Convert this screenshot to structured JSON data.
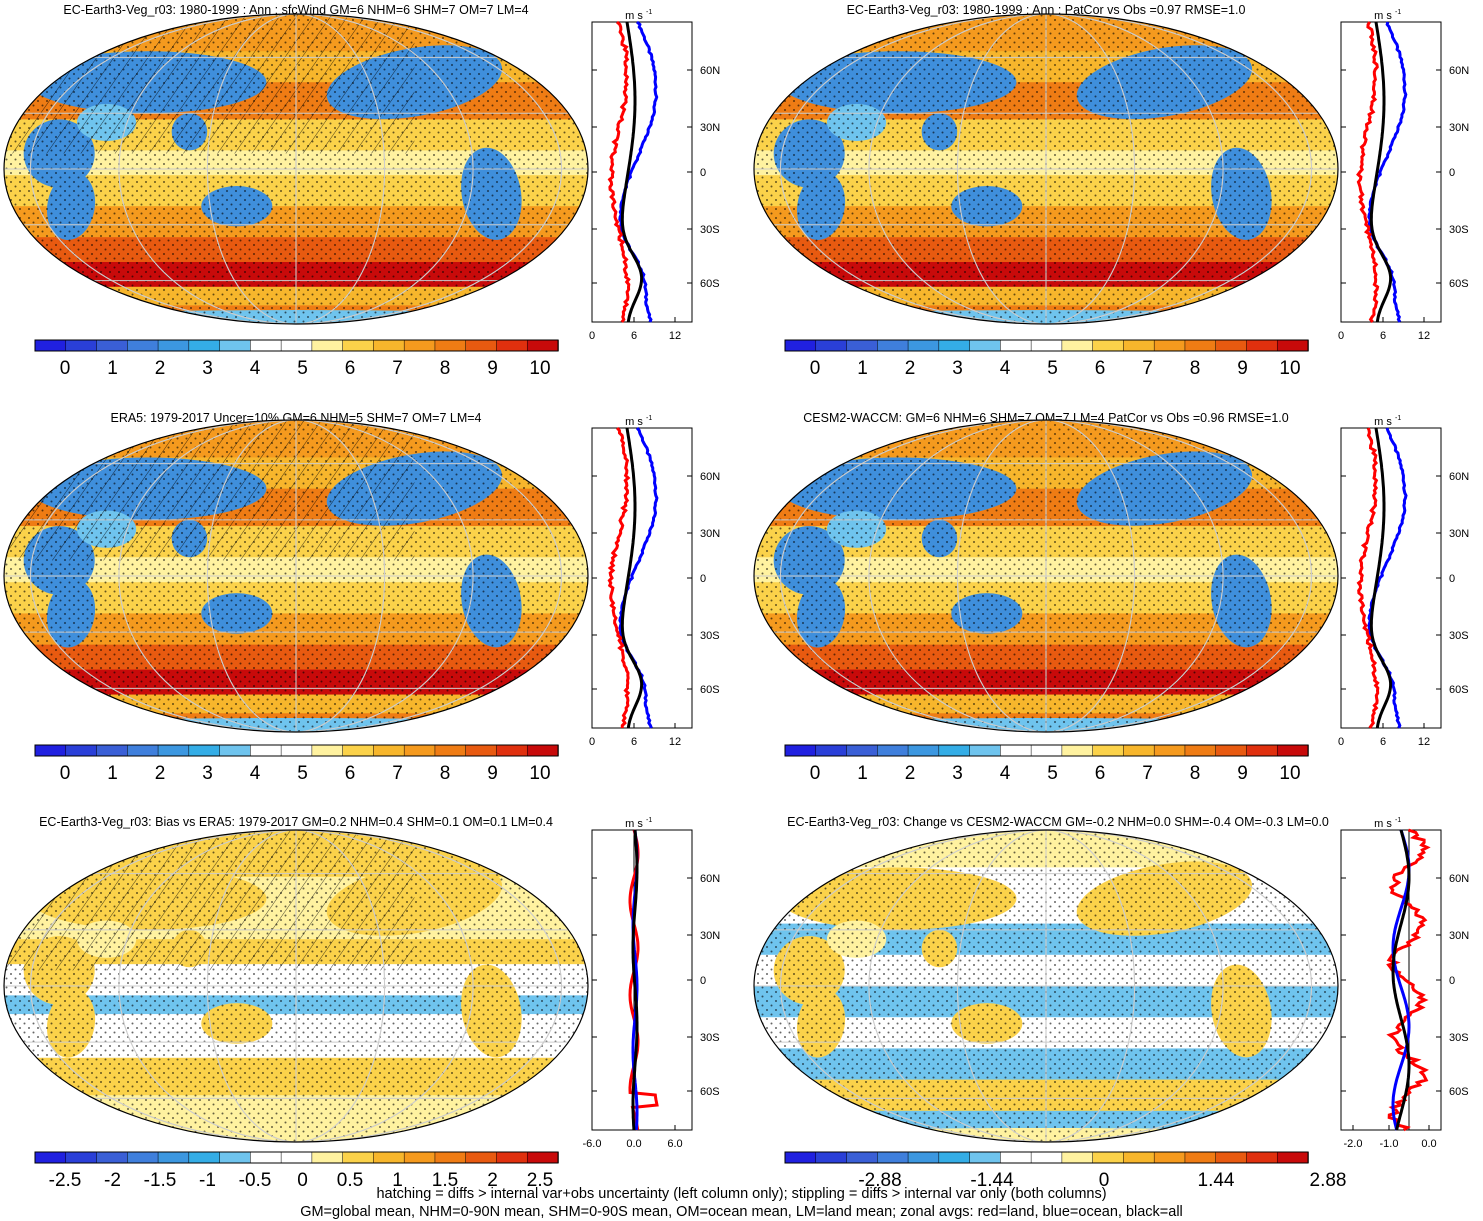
{
  "panels": [
    {
      "title": "EC-Earth3-Veg_r03: 1980-1999 : Ann : sfcWind GM=6 NHM=6 SHM=7 OM=7 LM=4",
      "kind": "clim",
      "hatch": true,
      "cb_labels": [
        "0",
        "1",
        "2",
        "3",
        "4",
        "5",
        "6",
        "7",
        "8",
        "9",
        "10"
      ],
      "zonal_unit": "m s-1",
      "zonal_xticks": [
        "0",
        "6",
        "12"
      ],
      "lat_ticks": [
        "60N",
        "30N",
        "0",
        "30S",
        "60S"
      ]
    },
    {
      "title": "EC-Earth3-Veg_r03: 1980-1999 : Ann : PatCor vs Obs =0.97 RMSE=1.0",
      "kind": "clim",
      "hatch": false,
      "cb_labels": [
        "0",
        "1",
        "2",
        "3",
        "4",
        "5",
        "6",
        "7",
        "8",
        "9",
        "10"
      ],
      "zonal_unit": "m s-1",
      "zonal_xticks": [
        "0",
        "6",
        "12"
      ],
      "lat_ticks": [
        "60N",
        "30N",
        "0",
        "30S",
        "60S"
      ]
    },
    {
      "title": "ERA5: 1979-2017 Uncer=10% GM=6 NHM=5 SHM=7 OM=7 LM=4",
      "kind": "clim",
      "hatch": true,
      "cb_labels": [
        "0",
        "1",
        "2",
        "3",
        "4",
        "5",
        "6",
        "7",
        "8",
        "9",
        "10"
      ],
      "zonal_unit": "m s-1",
      "zonal_xticks": [
        "0",
        "6",
        "12"
      ],
      "lat_ticks": [
        "60N",
        "30N",
        "0",
        "30S",
        "60S"
      ]
    },
    {
      "title": "CESM2-WACCM: GM=6 NHM=6 SHM=7 OM=7 LM=4 PatCor vs Obs =0.96 RMSE=1.0",
      "kind": "clim",
      "hatch": false,
      "cb_labels": [
        "0",
        "1",
        "2",
        "3",
        "4",
        "5",
        "6",
        "7",
        "8",
        "9",
        "10"
      ],
      "zonal_unit": "m s-1",
      "zonal_xticks": [
        "0",
        "6",
        "12"
      ],
      "lat_ticks": [
        "60N",
        "30N",
        "0",
        "30S",
        "60S"
      ]
    },
    {
      "title": "EC-Earth3-Veg_r03: Bias vs ERA5: 1979-2017 GM=0.2 NHM=0.4 SHM=0.1 OM=0.1 LM=0.4",
      "kind": "bias",
      "hatch": true,
      "cb_labels": [
        "-2.5",
        "-2",
        "-1.5",
        "-1",
        "-0.5",
        "0",
        "0.5",
        "1",
        "1.5",
        "2",
        "2.5"
      ],
      "zonal_unit": "m s-1",
      "zonal_xticks": [
        "-6.0",
        "0.0",
        "6.0"
      ],
      "lat_ticks": [
        "60N",
        "30N",
        "0",
        "30S",
        "60S"
      ]
    },
    {
      "title": "EC-Earth3-Veg_r03: Change vs CESM2-WACCM GM=-0.2 NHM=0.0 SHM=-0.4 OM=-0.3 LM=0.0",
      "kind": "change",
      "hatch": false,
      "cb_labels": [
        "-2.88",
        "-1.44",
        "0",
        "1.44",
        "2.88"
      ],
      "zonal_unit": "m s-1",
      "zonal_xticks": [
        "-2.0",
        "-1.0",
        "0.0"
      ],
      "lat_ticks": [
        "60N",
        "30N",
        "0",
        "30S",
        "60S"
      ]
    }
  ],
  "colors": {
    "clim": [
      "#2020e0",
      "#2a3fd8",
      "#3a5fd6",
      "#3f7fdc",
      "#3c97e0",
      "#34ade6",
      "#6fc4ee",
      "#ffffff",
      "#ffffff",
      "#fff2a0",
      "#fbd24a",
      "#f7b62c",
      "#f59a1e",
      "#ef7c14",
      "#e85a10",
      "#e0300e",
      "#c80a0a"
    ],
    "diff": [
      "#2020e0",
      "#2a3fd8",
      "#3a5fd6",
      "#3f7fdc",
      "#3c97e0",
      "#34ade6",
      "#6fc4ee",
      "#ffffff",
      "#ffffff",
      "#fff2a0",
      "#fbd24a",
      "#f7b62c",
      "#f59a1e",
      "#ef7c14",
      "#e85a10",
      "#e0300e",
      "#c80a0a"
    ],
    "land_line": "#ff0000",
    "ocean_line": "#0000ff",
    "all_line": "#000000"
  },
  "footer": {
    "line1": "hatching = diffs > internal var+obs uncertainty (left column only); stippling = diffs > internal var only (both columns)",
    "line2": "GM=global mean, NHM=0-90N mean, SHM=0-90S mean, OM=ocean mean, LM=land mean; zonal avgs: red=land, blue=ocean, black=all"
  }
}
